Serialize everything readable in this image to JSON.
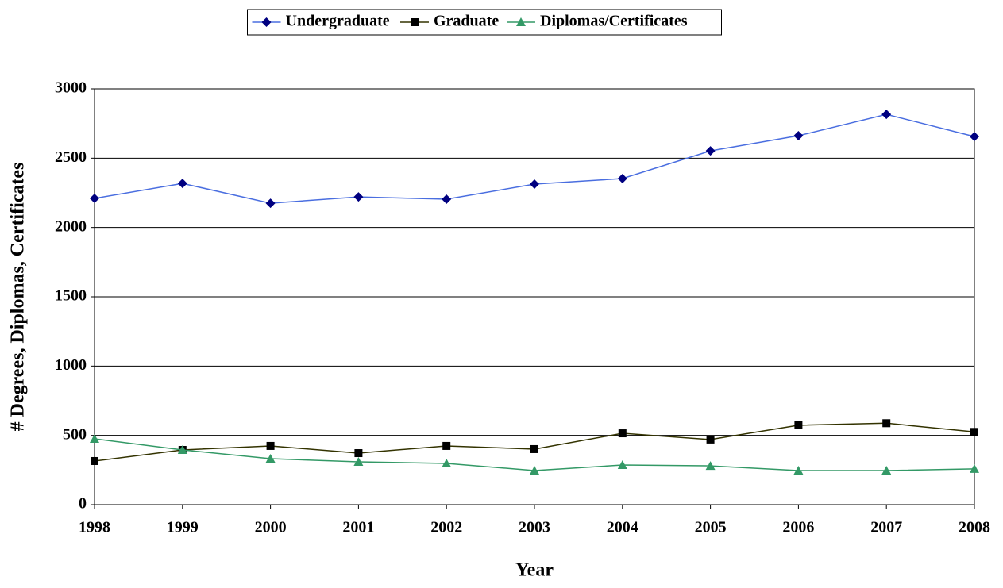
{
  "chart_data": {
    "type": "line",
    "x_label": "Year",
    "y_label": "# Degrees, Diplomas, Certificates",
    "categories": [
      "1998",
      "1999",
      "2000",
      "2001",
      "2002",
      "2003",
      "2004",
      "2005",
      "2006",
      "2007",
      "2008"
    ],
    "series": [
      {
        "name": "Undergraduate",
        "color": "#4a6ee0",
        "marker_color": "#000080",
        "marker": "diamond",
        "values": [
          2210,
          2318,
          2175,
          2221,
          2204,
          2313,
          2353,
          2553,
          2662,
          2816,
          2656
        ]
      },
      {
        "name": "Graduate",
        "color": "#333300",
        "marker_color": "#000000",
        "marker": "square",
        "values": [
          315,
          395,
          424,
          372,
          424,
          401,
          515,
          470,
          573,
          588,
          525
        ]
      },
      {
        "name": "Diplomas/Certificates",
        "color": "#339966",
        "marker_color": "#339966",
        "marker": "triangle",
        "values": [
          475,
          395,
          332,
          309,
          298,
          246,
          286,
          280,
          246,
          246,
          258
        ]
      }
    ],
    "ylim": [
      0,
      3000
    ],
    "yticks": [
      0,
      500,
      1000,
      1500,
      2000,
      2500,
      3000
    ],
    "grid": true,
    "legend": "top"
  }
}
